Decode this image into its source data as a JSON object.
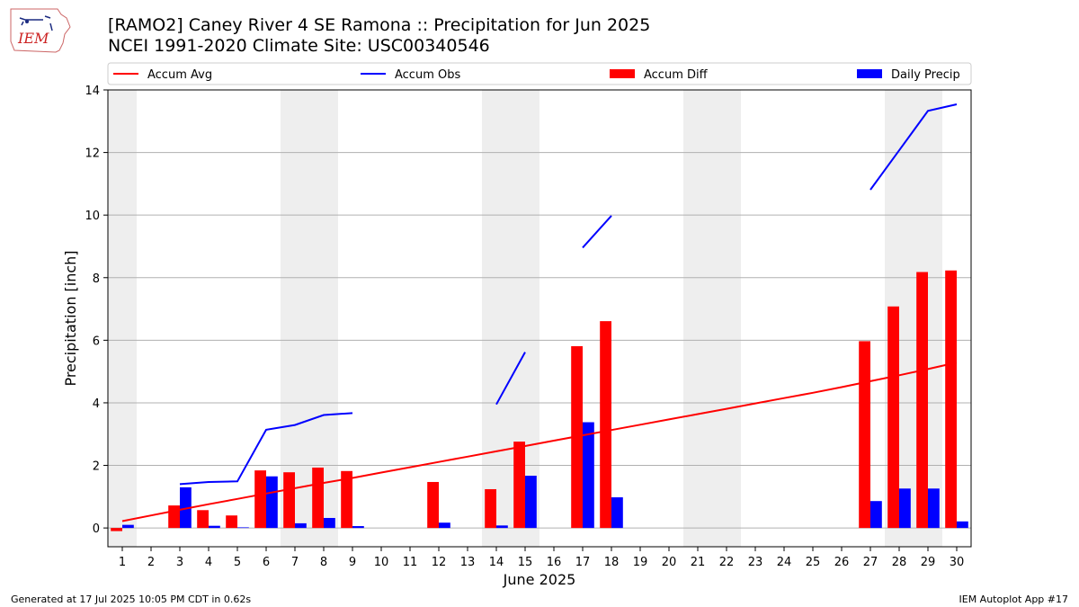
{
  "header": {
    "title_line1": "[RAMO2] Caney River 4 SE Ramona :: Precipitation for Jun 2025",
    "title_line2": "NCEI 1991-2020 Climate Site: USC00340546",
    "logo_text": "IEM"
  },
  "footer": {
    "generated": "Generated at 17 Jul 2025 10:05 PM CDT in 0.62s",
    "app": "IEM Autoplot App #17"
  },
  "colors": {
    "accum_avg": "#ff0000",
    "accum_obs": "#0000ff",
    "accum_diff": "#ff0000",
    "daily_precip": "#0000ff",
    "weekend_shade": "#eeeeee",
    "grid": "#b0b0b0"
  },
  "chart_data": {
    "type": "bar",
    "xlabel": "June 2025",
    "ylabel": "Precipitation [inch]",
    "ylim": [
      -0.6,
      14
    ],
    "yticks": [
      0,
      2,
      4,
      6,
      8,
      10,
      12,
      14
    ],
    "xlim": [
      0.5,
      30.5
    ],
    "days": [
      1,
      2,
      3,
      4,
      5,
      6,
      7,
      8,
      9,
      10,
      11,
      12,
      13,
      14,
      15,
      16,
      17,
      18,
      19,
      20,
      21,
      22,
      23,
      24,
      25,
      26,
      27,
      28,
      29,
      30
    ],
    "grid": "horizontal",
    "legend_position": "top",
    "legend": [
      "Accum Avg",
      "Accum Obs",
      "Accum Diff",
      "Daily Precip"
    ],
    "shaded_days": [
      1,
      7,
      8,
      14,
      15,
      21,
      22,
      28,
      29
    ],
    "series": [
      {
        "name": "Accum Avg",
        "kind": "line",
        "values": [
          0.22,
          0.4,
          0.58,
          0.76,
          0.93,
          1.1,
          1.27,
          1.44,
          1.6,
          1.77,
          1.94,
          2.11,
          2.28,
          2.45,
          2.62,
          2.79,
          2.96,
          3.13,
          3.3,
          3.47,
          3.64,
          3.81,
          3.98,
          4.15,
          4.32,
          4.5,
          4.69,
          4.88,
          5.08,
          5.29
        ]
      },
      {
        "name": "Accum Obs",
        "kind": "line",
        "values": [
          null,
          null,
          1.4,
          1.47,
          1.49,
          3.14,
          3.29,
          3.61,
          3.67,
          null,
          null,
          null,
          null,
          3.95,
          5.62,
          null,
          8.96,
          9.98,
          null,
          null,
          null,
          null,
          null,
          null,
          null,
          null,
          10.81,
          12.07,
          13.33,
          13.54
        ]
      },
      {
        "name": "Accum Diff",
        "kind": "bar",
        "values": [
          -0.1,
          null,
          0.72,
          0.57,
          0.4,
          1.84,
          1.78,
          1.93,
          1.82,
          null,
          null,
          1.47,
          null,
          1.24,
          2.76,
          null,
          5.81,
          6.61,
          null,
          null,
          null,
          null,
          null,
          null,
          null,
          null,
          5.97,
          7.08,
          8.18,
          8.23
        ]
      },
      {
        "name": "Daily Precip",
        "kind": "bar",
        "values": [
          0.1,
          null,
          1.3,
          0.07,
          0.02,
          1.65,
          0.15,
          0.32,
          0.06,
          null,
          null,
          0.17,
          null,
          0.08,
          1.67,
          null,
          3.38,
          0.98,
          null,
          null,
          null,
          null,
          null,
          null,
          null,
          null,
          0.86,
          1.26,
          1.26,
          0.21
        ]
      }
    ]
  }
}
